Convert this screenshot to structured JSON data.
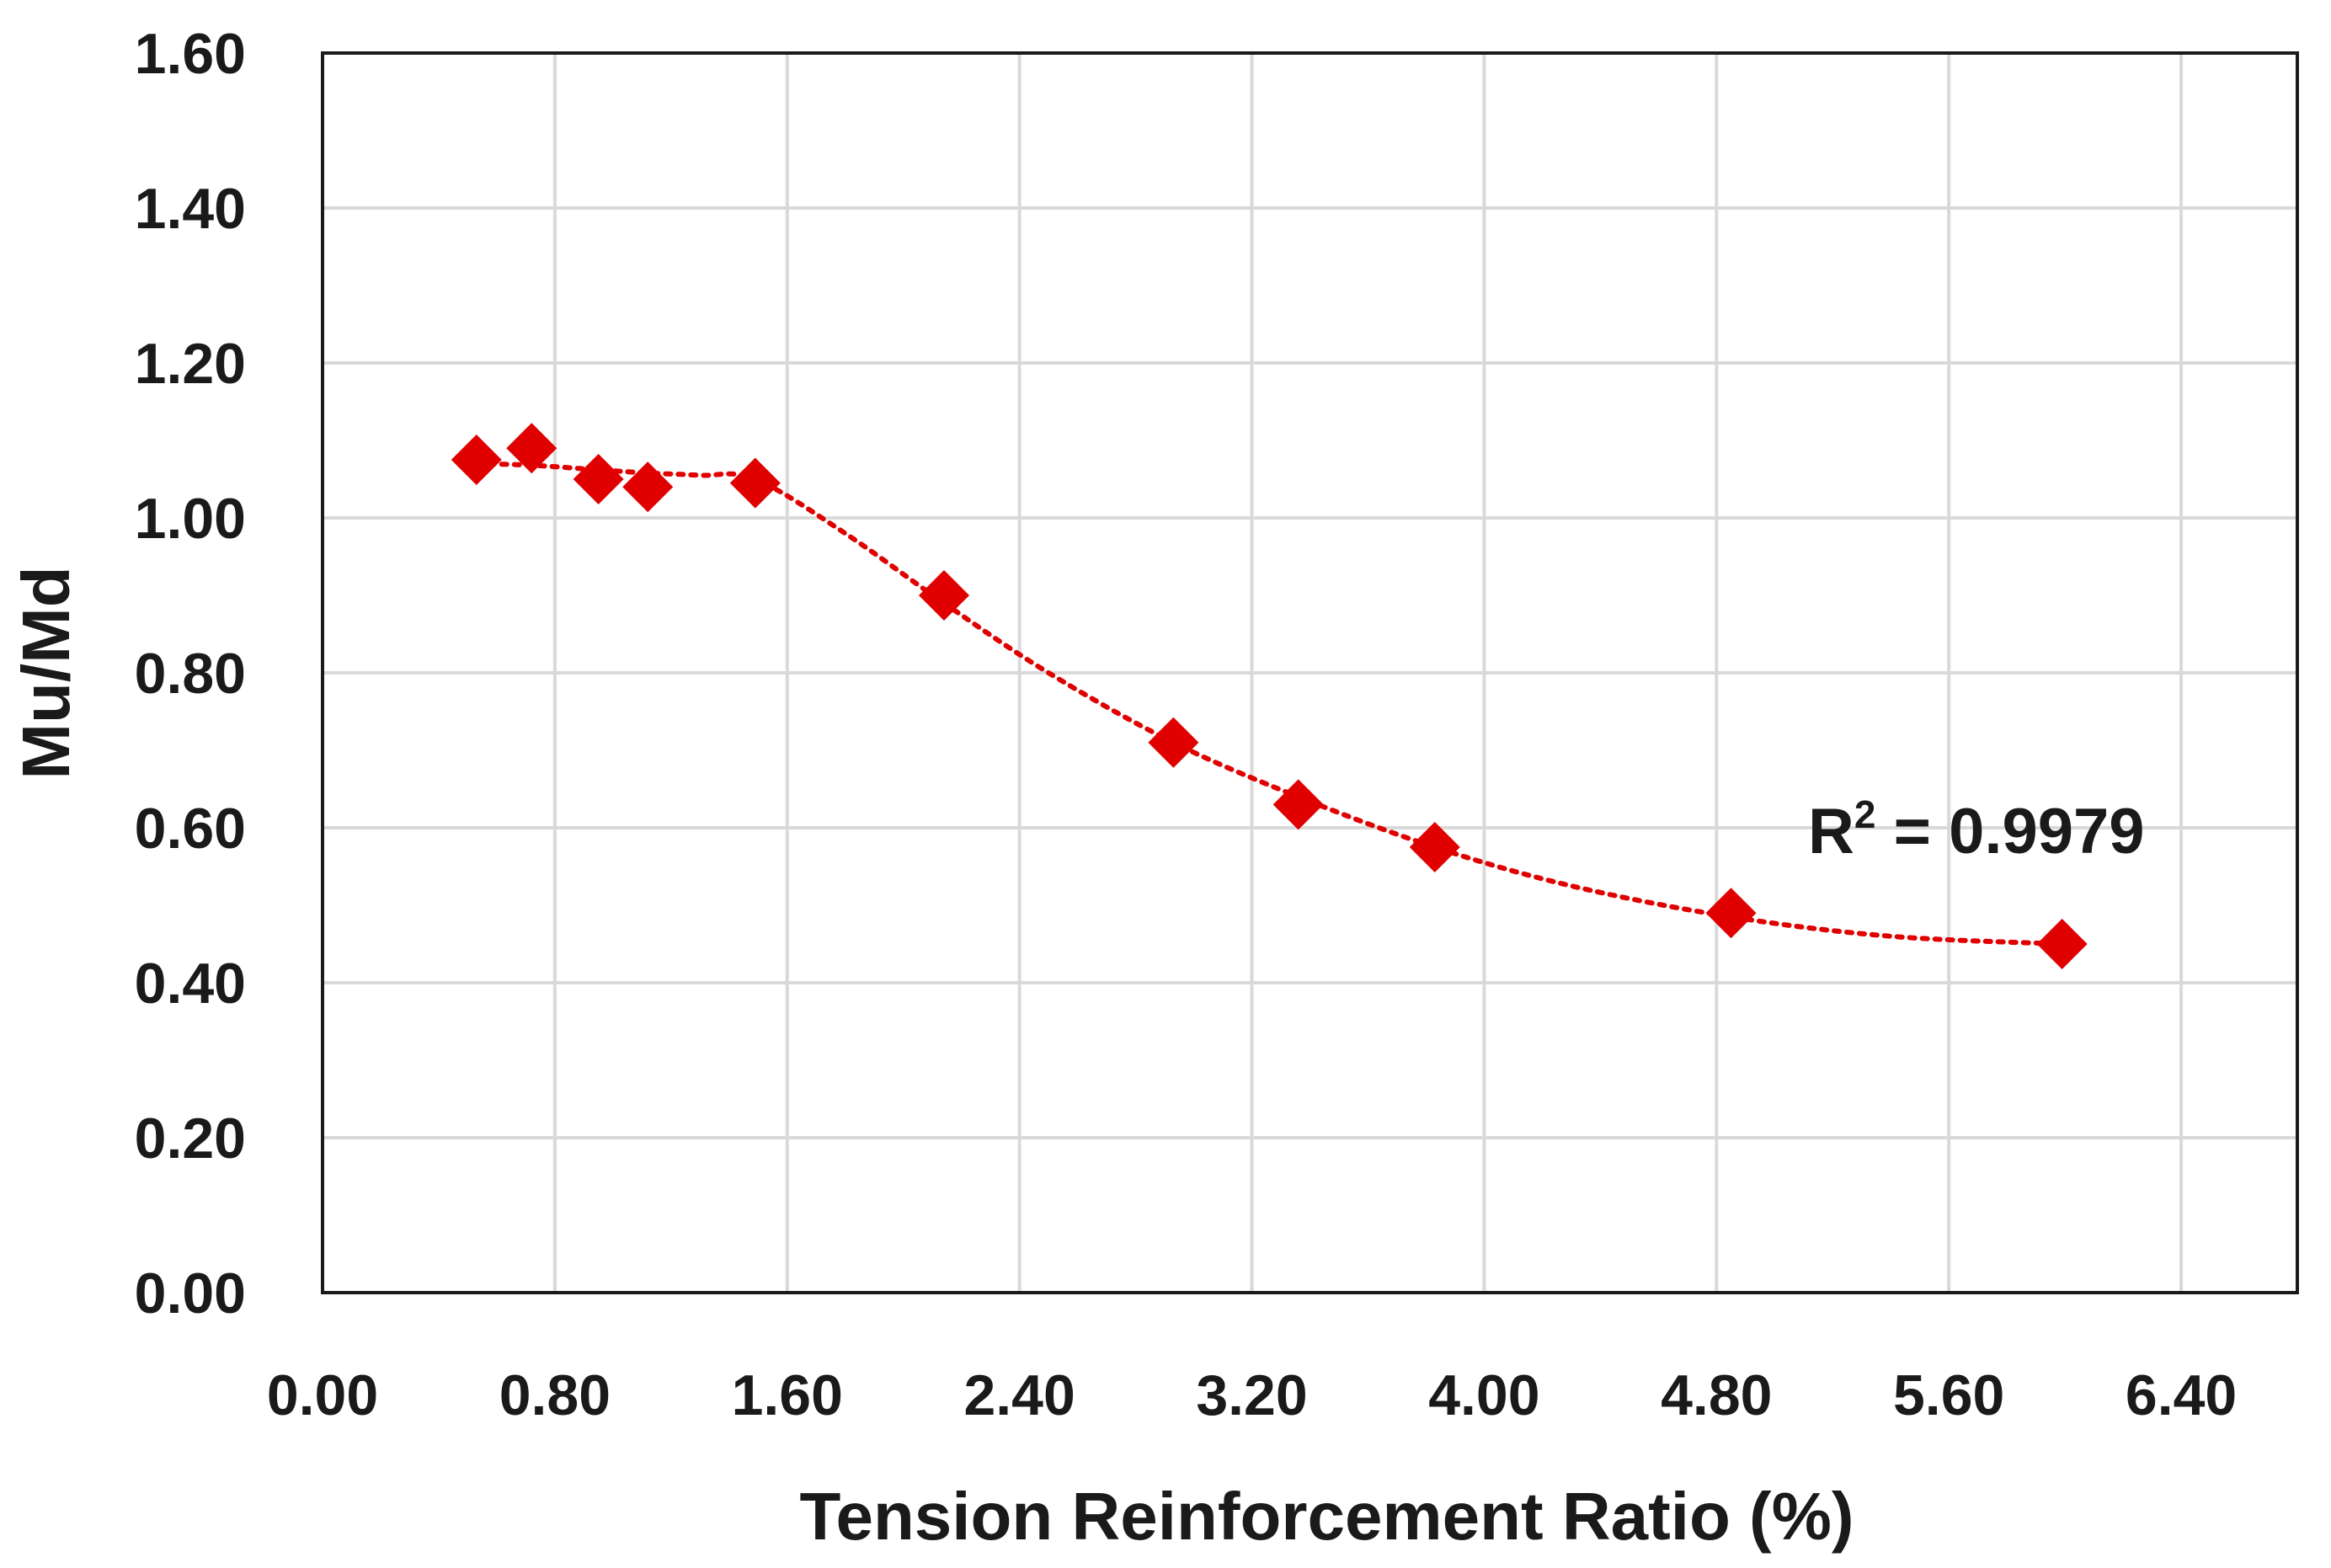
{
  "chart_data": {
    "type": "scatter",
    "title": "",
    "xlabel": "Tension Reinforcement Ratio (%)",
    "ylabel": "Mu/Md",
    "xlim": [
      0,
      6.8
    ],
    "ylim": [
      0,
      1.6
    ],
    "xticks": [
      "0.00",
      "0.80",
      "1.60",
      "2.40",
      "3.20",
      "4.00",
      "4.80",
      "5.60",
      "6.40"
    ],
    "yticks": [
      "0.00",
      "0.20",
      "0.40",
      "0.60",
      "0.80",
      "1.00",
      "1.20",
      "1.40",
      "1.60"
    ],
    "xtick_values": [
      0,
      0.8,
      1.6,
      2.4,
      3.2,
      4.0,
      4.8,
      5.6,
      6.4
    ],
    "ytick_values": [
      0,
      0.2,
      0.4,
      0.6,
      0.8,
      1.0,
      1.2,
      1.4,
      1.6
    ],
    "grid": true,
    "series": [
      {
        "name": "Mu/Md",
        "marker": "diamond",
        "color": "#e00000",
        "x": [
          0.53,
          0.72,
          0.95,
          1.12,
          1.49,
          2.14,
          2.93,
          3.36,
          3.83,
          4.85,
          5.99
        ],
        "y": [
          1.075,
          1.09,
          1.05,
          1.04,
          1.045,
          0.9,
          0.71,
          0.63,
          0.575,
          0.49,
          0.45
        ]
      }
    ],
    "trendline": {
      "style": "dotted",
      "color": "#e00000",
      "x": [
        0.53,
        0.72,
        0.95,
        1.12,
        1.3,
        1.49,
        1.8,
        2.14,
        2.5,
        2.93,
        3.36,
        3.83,
        4.3,
        4.85,
        5.4,
        5.99
      ],
      "y": [
        1.07,
        1.068,
        1.062,
        1.058,
        1.055,
        1.05,
        0.98,
        0.89,
        0.8,
        0.71,
        0.64,
        0.575,
        0.525,
        0.485,
        0.46,
        0.45
      ]
    },
    "annotations": {
      "r2_prefix": "R",
      "r2_sup": "2",
      "r2_value": " = 0.9979"
    }
  }
}
